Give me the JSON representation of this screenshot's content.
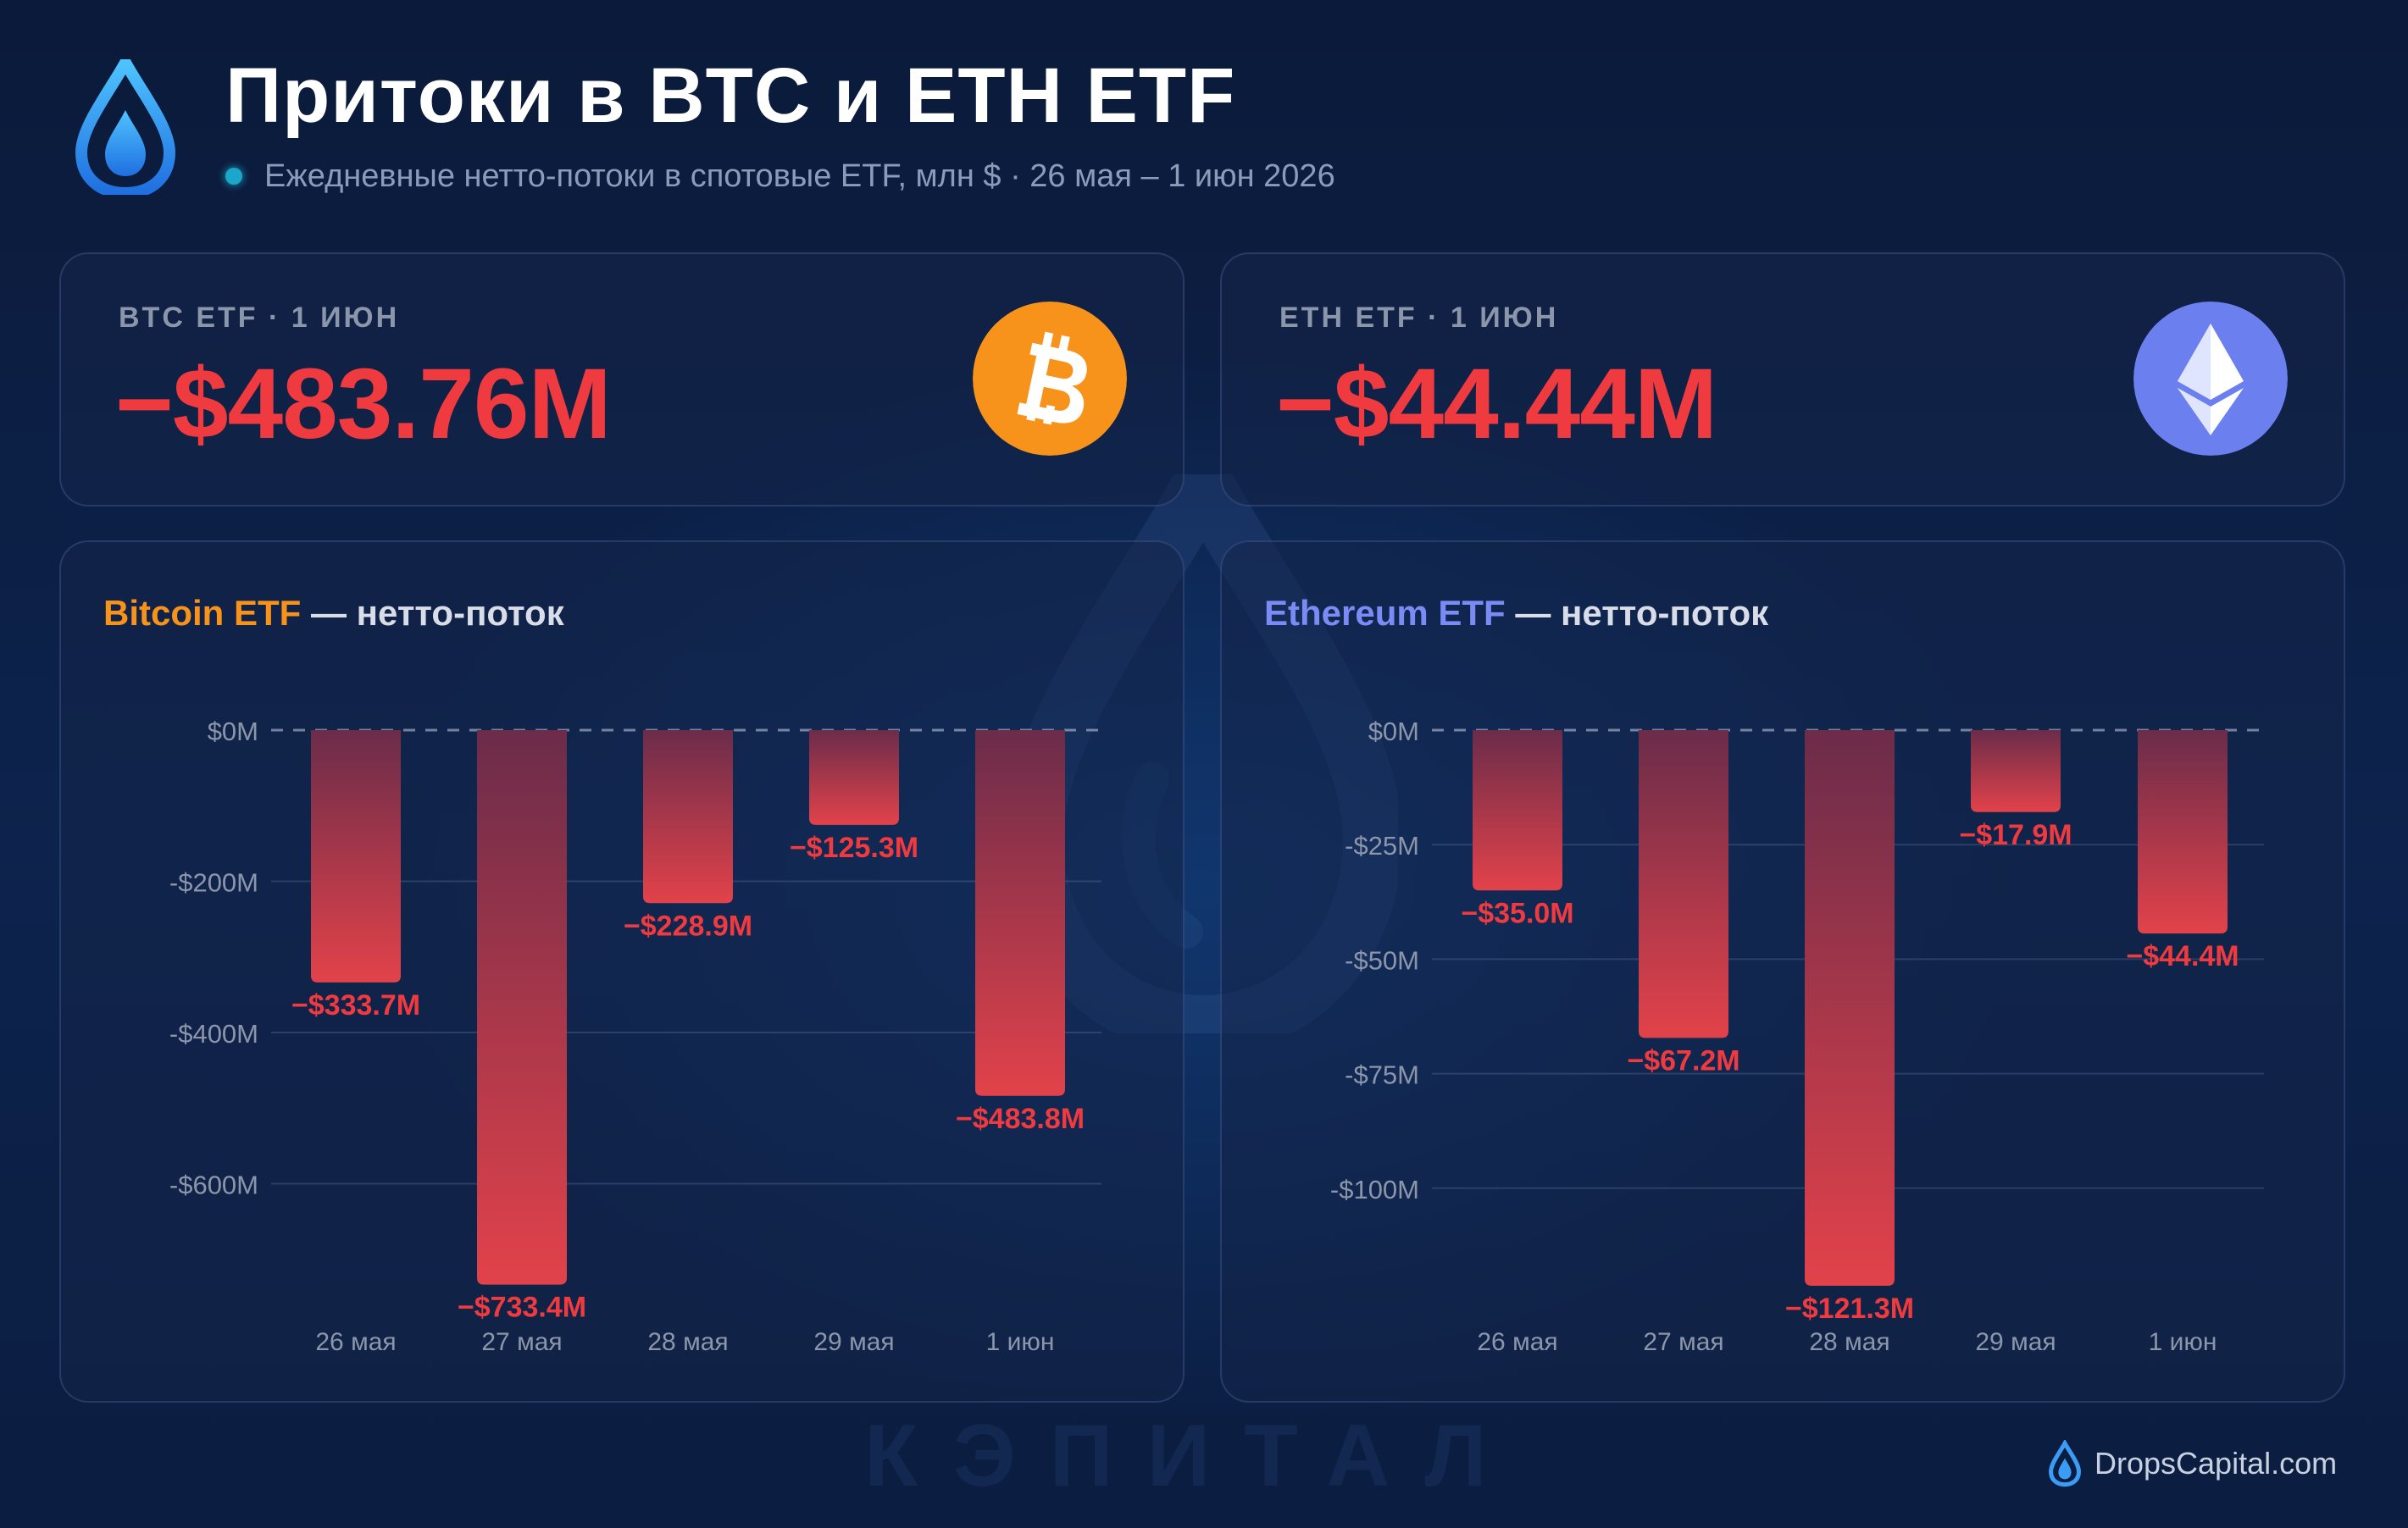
{
  "header": {
    "title": "Притоки в BTC и ETH ETF",
    "subtitle": "Ежедневные нетто-потоки в спотовые ETF, млн $ · 26 мая – 1 июн 2026"
  },
  "kpis": {
    "btc": {
      "label": "BTC ETF · 1 ИЮН",
      "value": "−$483.76M",
      "icon": "bitcoin-icon"
    },
    "eth": {
      "label": "ETH ETF · 1 ИЮН",
      "value": "−$44.44M",
      "icon": "ethereum-icon"
    }
  },
  "colors": {
    "negative": "#ef3b3f",
    "bitcoin": "#f7931a",
    "ethereum": "#7b8bf5",
    "bar_top": "#6b2c4a",
    "bar_bottom": "#e2424a"
  },
  "watermark": "КЭПИТАЛ",
  "brand": "DropsCapital.com",
  "chart_data": [
    {
      "type": "bar",
      "title_accent": "Bitcoin ETF",
      "title_rest": " — нетто-поток",
      "categories": [
        "26 мая",
        "27 мая",
        "28 мая",
        "29 мая",
        "1 июн"
      ],
      "values": [
        -333.7,
        -733.4,
        -228.9,
        -125.3,
        -483.8
      ],
      "value_labels": [
        "−$333.7M",
        "−$733.4M",
        "−$228.9M",
        "−$125.3M",
        "−$483.8M"
      ],
      "yticks": [
        0,
        -200,
        -400,
        -600
      ],
      "ytick_labels": [
        "$0M",
        "-$200M",
        "-$400M",
        "-$600M"
      ],
      "ylim": [
        -735,
        0
      ],
      "grid": true
    },
    {
      "type": "bar",
      "title_accent": "Ethereum ETF",
      "title_rest": " — нетто-поток",
      "categories": [
        "26 мая",
        "27 мая",
        "28 мая",
        "29 мая",
        "1 июн"
      ],
      "values": [
        -35.0,
        -67.2,
        -121.3,
        -17.9,
        -44.4
      ],
      "value_labels": [
        "−$35.0M",
        "−$67.2M",
        "−$121.3M",
        "−$17.9M",
        "−$44.4M"
      ],
      "yticks": [
        0,
        -25,
        -50,
        -75,
        -100
      ],
      "ytick_labels": [
        "$0M",
        "-$25M",
        "-$50M",
        "-$75M",
        "-$100M"
      ],
      "ylim": [
        -121.3,
        0
      ],
      "grid": true
    }
  ]
}
